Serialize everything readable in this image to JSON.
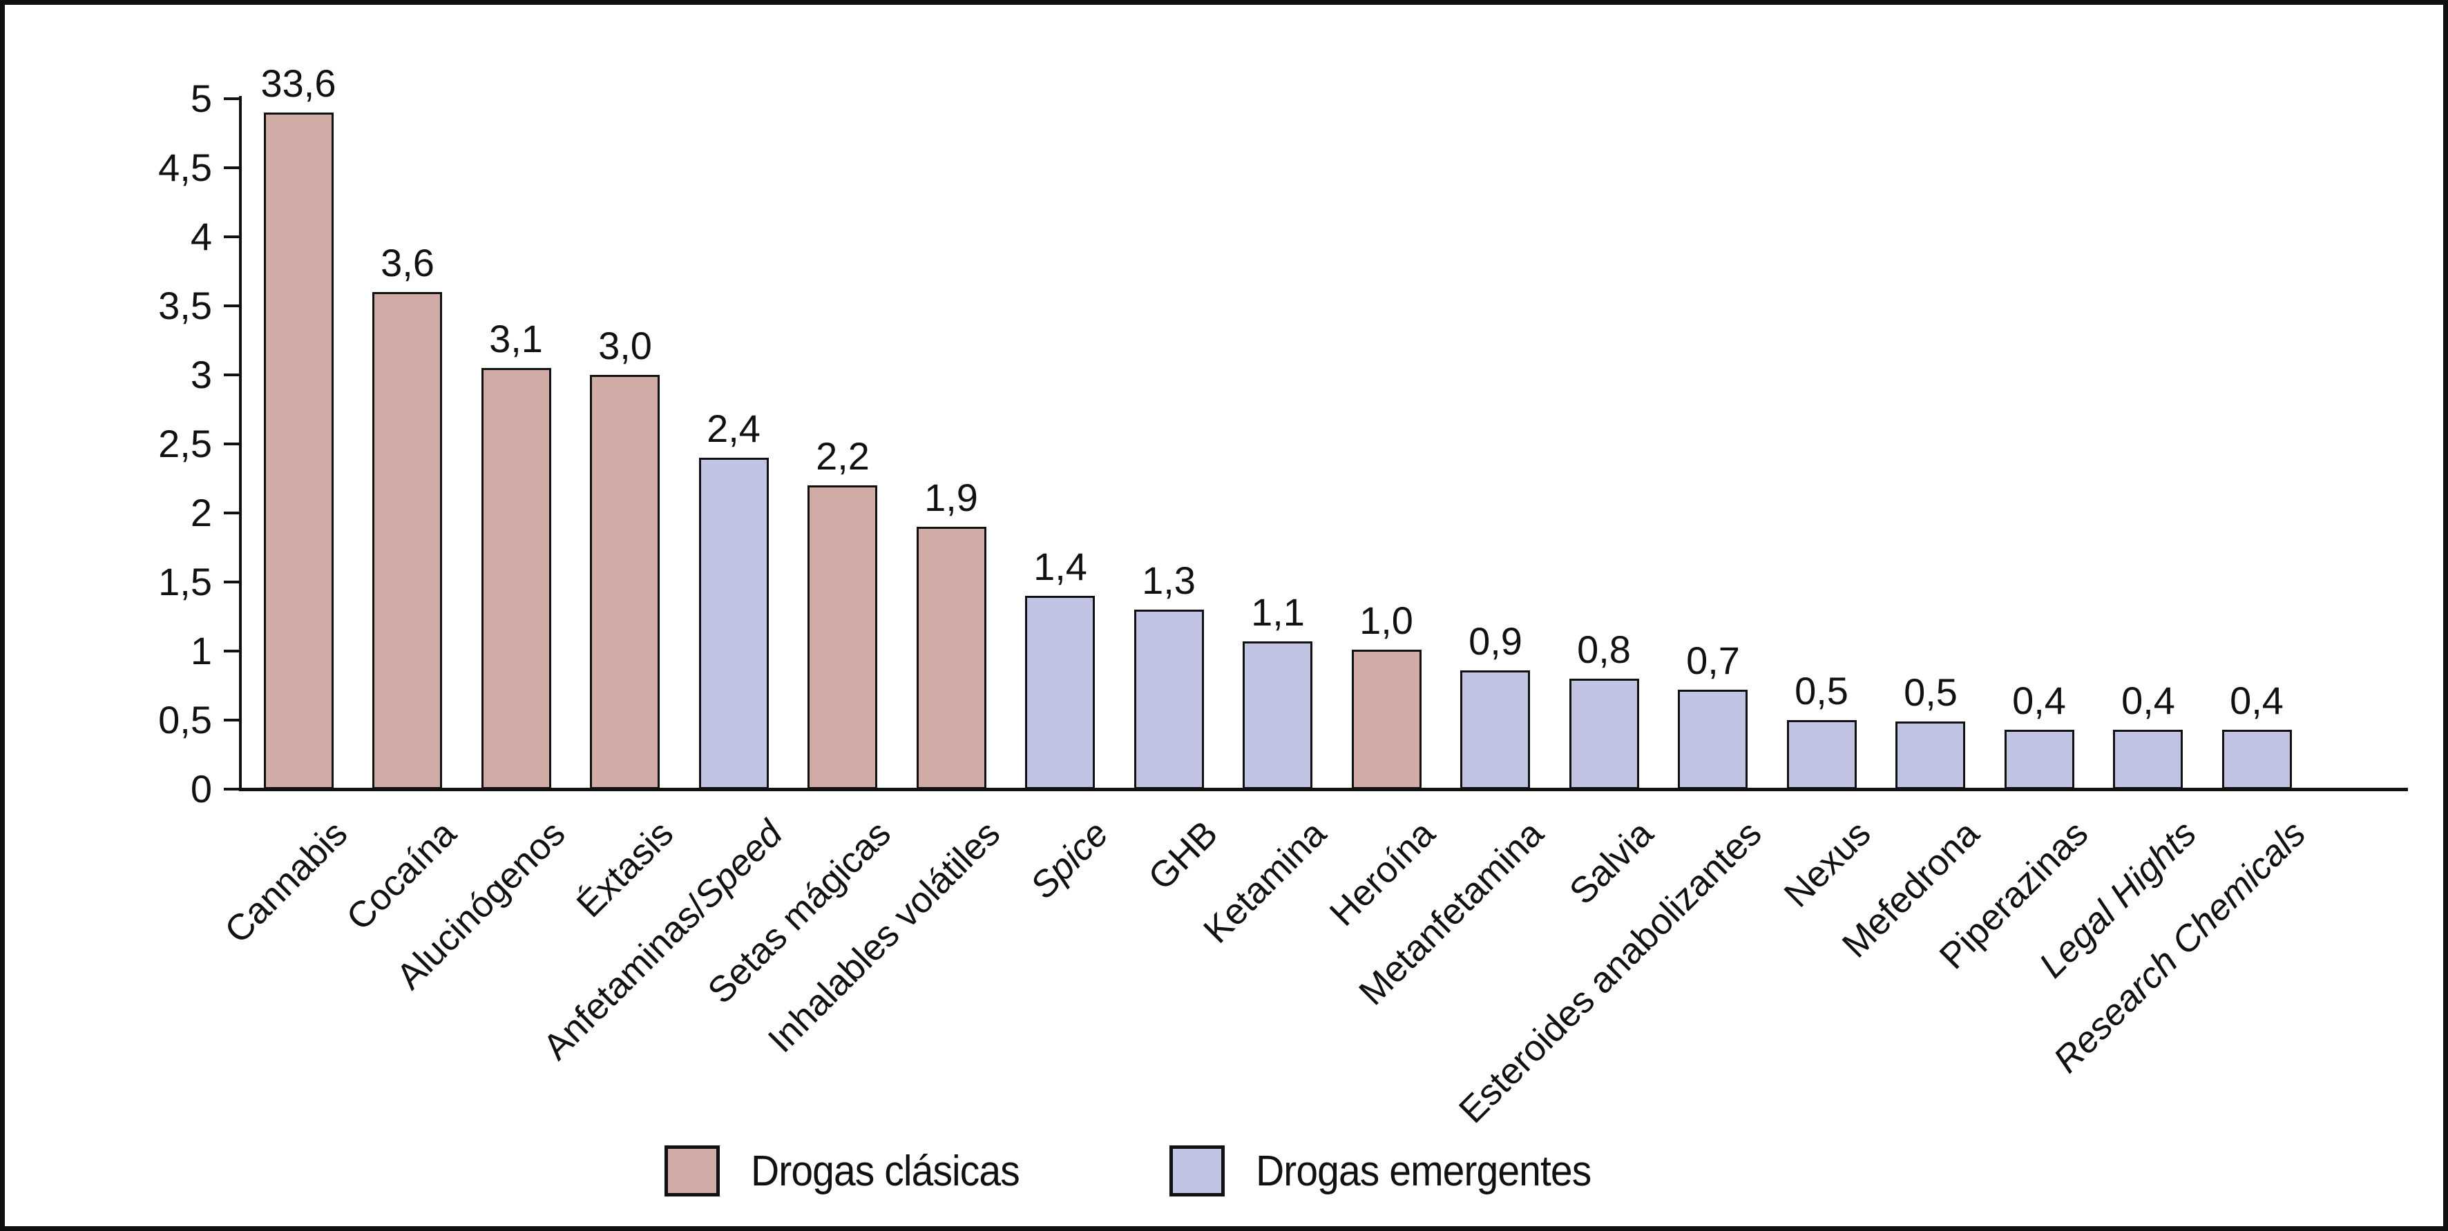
{
  "chart_data": {
    "type": "bar",
    "title": "",
    "xlabel": "",
    "ylabel": "",
    "ylim": [
      0,
      5
    ],
    "ytick_step": 0.5,
    "grid": false,
    "legend_position": "bottom",
    "decimal_separator": ",",
    "ytick_labels": [
      "0",
      "0,5",
      "1",
      "1,5",
      "2",
      "2,5",
      "3",
      "3,5",
      "4",
      "4,5",
      "5"
    ],
    "groups": {
      "clasicas": {
        "name": "Drogas clásicas",
        "color": "#d1aca7"
      },
      "emergentes": {
        "name": "Drogas emergentes",
        "color": "#c0c4e2"
      }
    },
    "bars": [
      {
        "label": "Cannabis",
        "parts": [
          {
            "text": "Cannabis",
            "italic": false
          }
        ],
        "value": 33.6,
        "value_label": "33,6",
        "group": "clasicas",
        "drawn": 4.9
      },
      {
        "label": "Cocaína",
        "parts": [
          {
            "text": "Cocaína",
            "italic": false
          }
        ],
        "value": 3.6,
        "value_label": "3,6",
        "group": "clasicas",
        "drawn": 3.6
      },
      {
        "label": "Alucinógenos",
        "parts": [
          {
            "text": "Alucinógenos",
            "italic": false
          }
        ],
        "value": 3.1,
        "value_label": "3,1",
        "group": "clasicas",
        "drawn": 3.05
      },
      {
        "label": "Éxtasis",
        "parts": [
          {
            "text": "Éxtasis",
            "italic": false
          }
        ],
        "value": 3.0,
        "value_label": "3,0",
        "group": "clasicas",
        "drawn": 3.0
      },
      {
        "label": "Anfetaminas/Speed",
        "parts": [
          {
            "text": "Anfetaminas/",
            "italic": false
          },
          {
            "text": "Speed",
            "italic": true
          }
        ],
        "value": 2.4,
        "value_label": "2,4",
        "group": "emergentes",
        "drawn": 2.4
      },
      {
        "label": "Setas mágicas",
        "parts": [
          {
            "text": "Setas mágicas",
            "italic": false
          }
        ],
        "value": 2.2,
        "value_label": "2,2",
        "group": "clasicas",
        "drawn": 2.2
      },
      {
        "label": "Inhalables volátiles",
        "parts": [
          {
            "text": "Inhalables volátiles",
            "italic": false
          }
        ],
        "value": 1.9,
        "value_label": "1,9",
        "group": "clasicas",
        "drawn": 1.9
      },
      {
        "label": "Spice",
        "parts": [
          {
            "text": "Spice",
            "italic": true
          }
        ],
        "value": 1.4,
        "value_label": "1,4",
        "group": "emergentes",
        "drawn": 1.4
      },
      {
        "label": "GHB",
        "parts": [
          {
            "text": "GHB",
            "italic": false
          }
        ],
        "value": 1.3,
        "value_label": "1,3",
        "group": "emergentes",
        "drawn": 1.3
      },
      {
        "label": "Ketamina",
        "parts": [
          {
            "text": "Ketamina",
            "italic": false
          }
        ],
        "value": 1.1,
        "value_label": "1,1",
        "group": "emergentes",
        "drawn": 1.07
      },
      {
        "label": "Heroína",
        "parts": [
          {
            "text": "Heroína",
            "italic": false
          }
        ],
        "value": 1.0,
        "value_label": "1,0",
        "group": "clasicas",
        "drawn": 1.01
      },
      {
        "label": "Metanfetamina",
        "parts": [
          {
            "text": "Metanfetamina",
            "italic": false
          }
        ],
        "value": 0.9,
        "value_label": "0,9",
        "group": "emergentes",
        "drawn": 0.86
      },
      {
        "label": "Salvia",
        "parts": [
          {
            "text": "Salvia",
            "italic": false
          }
        ],
        "value": 0.8,
        "value_label": "0,8",
        "group": "emergentes",
        "drawn": 0.8
      },
      {
        "label": "Esteroides anabolizantes",
        "parts": [
          {
            "text": "Esteroides anabolizantes",
            "italic": false
          }
        ],
        "value": 0.7,
        "value_label": "0,7",
        "group": "emergentes",
        "drawn": 0.72
      },
      {
        "label": "Nexus",
        "parts": [
          {
            "text": "Nexus",
            "italic": false
          }
        ],
        "value": 0.5,
        "value_label": "0,5",
        "group": "emergentes",
        "drawn": 0.5
      },
      {
        "label": "Mefedrona",
        "parts": [
          {
            "text": "Mefedrona",
            "italic": false
          }
        ],
        "value": 0.5,
        "value_label": "0,5",
        "group": "emergentes",
        "drawn": 0.49
      },
      {
        "label": "Piperazinas",
        "parts": [
          {
            "text": "Piperazinas",
            "italic": false
          }
        ],
        "value": 0.4,
        "value_label": "0,4",
        "group": "emergentes",
        "drawn": 0.43
      },
      {
        "label": "Legal Hights",
        "parts": [
          {
            "text": "Legal Hights",
            "italic": true
          }
        ],
        "value": 0.4,
        "value_label": "0,4",
        "group": "emergentes",
        "drawn": 0.43
      },
      {
        "label": "Research Chemicals",
        "parts": [
          {
            "text": "Research Chemicals",
            "italic": true
          }
        ],
        "value": 0.4,
        "value_label": "0,4",
        "group": "emergentes",
        "drawn": 0.43
      }
    ],
    "legend": [
      {
        "label": "Drogas clásicas",
        "color": "#d1aca7"
      },
      {
        "label": "Drogas emergentes",
        "color": "#c0c4e2"
      }
    ]
  }
}
